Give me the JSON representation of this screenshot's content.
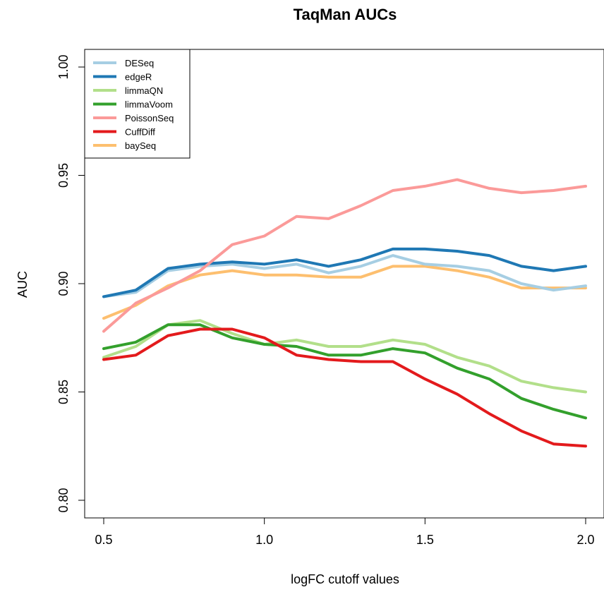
{
  "chart_data": {
    "type": "line",
    "title": "TaqMan AUCs",
    "xlabel": "logFC cutoff values",
    "ylabel": "AUC",
    "xlim": [
      0.45,
      2.05
    ],
    "ylim": [
      0.795,
      1.01
    ],
    "xticks": [
      0.5,
      1.0,
      1.5,
      2.0
    ],
    "xtick_labels": [
      "0.5",
      "1.0",
      "1.5",
      "2.0"
    ],
    "yticks": [
      0.8,
      0.85,
      0.9,
      0.95,
      1.0
    ],
    "ytick_labels": [
      "0.80",
      "0.85",
      "0.90",
      "0.95",
      "1.00"
    ],
    "grid": false,
    "legend_position": "top-left",
    "x": [
      0.5,
      0.6,
      0.7,
      0.8,
      0.9,
      1.0,
      1.1,
      1.2,
      1.3,
      1.4,
      1.5,
      1.6,
      1.7,
      1.8,
      1.9,
      2.0
    ],
    "series": [
      {
        "name": "DESeq",
        "color": "#a6cee3",
        "values": [
          0.894,
          0.896,
          0.906,
          0.908,
          0.909,
          0.907,
          0.909,
          0.905,
          0.908,
          0.913,
          0.909,
          0.908,
          0.906,
          0.9,
          0.897,
          0.899
        ]
      },
      {
        "name": "edgeR",
        "color": "#1f78b4",
        "values": [
          0.894,
          0.897,
          0.907,
          0.909,
          0.91,
          0.909,
          0.911,
          0.908,
          0.911,
          0.916,
          0.916,
          0.915,
          0.913,
          0.908,
          0.906,
          0.908
        ]
      },
      {
        "name": "limmaQN",
        "color": "#b2df8a",
        "values": [
          0.866,
          0.871,
          0.881,
          0.883,
          0.877,
          0.872,
          0.874,
          0.871,
          0.871,
          0.874,
          0.872,
          0.866,
          0.862,
          0.855,
          0.852,
          0.85
        ]
      },
      {
        "name": "limmaVoom",
        "color": "#33a02c",
        "values": [
          0.87,
          0.873,
          0.881,
          0.881,
          0.875,
          0.872,
          0.871,
          0.867,
          0.867,
          0.87,
          0.868,
          0.861,
          0.856,
          0.847,
          0.842,
          0.838
        ]
      },
      {
        "name": "PoissonSeq",
        "color": "#fb9a99",
        "values": [
          0.878,
          0.891,
          0.898,
          0.906,
          0.918,
          0.922,
          0.931,
          0.93,
          0.936,
          0.943,
          0.945,
          0.948,
          0.944,
          0.942,
          0.943,
          0.945
        ]
      },
      {
        "name": "CuffDiff",
        "color": "#e31a1c",
        "values": [
          0.865,
          0.867,
          0.876,
          0.879,
          0.879,
          0.875,
          0.867,
          0.865,
          0.864,
          0.864,
          0.856,
          0.849,
          0.84,
          0.832,
          0.826,
          0.825
        ]
      },
      {
        "name": "baySeq",
        "color": "#fdbf6f",
        "values": [
          0.884,
          0.89,
          0.899,
          0.904,
          0.906,
          0.904,
          0.904,
          0.903,
          0.903,
          0.908,
          0.908,
          0.906,
          0.903,
          0.898,
          0.898,
          0.898
        ]
      }
    ]
  }
}
